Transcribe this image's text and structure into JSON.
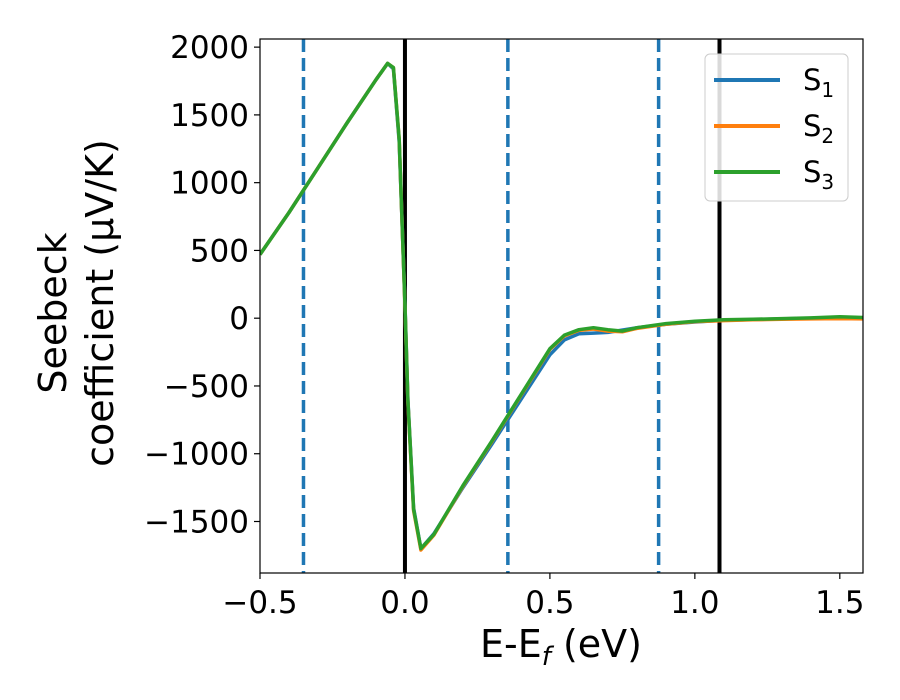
{
  "chart_data": {
    "type": "line",
    "xlabel": "E-E",
    "xlabel_sub": "f",
    "xlabel_unit": " (eV)",
    "ylabel_line1": "Seebeck",
    "ylabel_line2": "coefficient  (μV/K)",
    "xlim": [
      -0.5,
      1.58
    ],
    "ylim": [
      -1880,
      2060
    ],
    "xticks": [
      {
        "value": -0.5,
        "label": "−0.5"
      },
      {
        "value": 0.0,
        "label": "0.0"
      },
      {
        "value": 0.5,
        "label": "0.5"
      },
      {
        "value": 1.0,
        "label": "1.0"
      },
      {
        "value": 1.5,
        "label": "1.5"
      }
    ],
    "yticks": [
      {
        "value": 2000,
        "label": "2000"
      },
      {
        "value": 1500,
        "label": "1500"
      },
      {
        "value": 1000,
        "label": "1000"
      },
      {
        "value": 500,
        "label": "500"
      },
      {
        "value": 0,
        "label": "0"
      },
      {
        "value": -500,
        "label": "−500"
      },
      {
        "value": -1000,
        "label": "−1000"
      },
      {
        "value": -1500,
        "label": "−1500"
      }
    ],
    "grid": false,
    "legend_position": "top-right",
    "vertical_lines": [
      {
        "x": -0.35,
        "style": "dashed",
        "color": "#1f77b4"
      },
      {
        "x": 0.0,
        "style": "solid",
        "color": "#000000"
      },
      {
        "x": 0.355,
        "style": "dashed",
        "color": "#1f77b4"
      },
      {
        "x": 0.875,
        "style": "dashed",
        "color": "#1f77b4"
      },
      {
        "x": 1.085,
        "style": "solid",
        "color": "#000000"
      }
    ],
    "series": [
      {
        "name": "S",
        "sub": "1",
        "color": "#1f77b4",
        "points": [
          [
            -0.5,
            470
          ],
          [
            -0.4,
            780
          ],
          [
            -0.3,
            1110
          ],
          [
            -0.2,
            1440
          ],
          [
            -0.1,
            1760
          ],
          [
            -0.06,
            1880
          ],
          [
            -0.04,
            1840
          ],
          [
            -0.02,
            1300
          ],
          [
            0.0,
            100
          ],
          [
            0.01,
            -600
          ],
          [
            0.03,
            -1400
          ],
          [
            0.055,
            -1700
          ],
          [
            0.1,
            -1590
          ],
          [
            0.2,
            -1250
          ],
          [
            0.3,
            -930
          ],
          [
            0.4,
            -600
          ],
          [
            0.5,
            -270
          ],
          [
            0.55,
            -160
          ],
          [
            0.6,
            -115
          ],
          [
            0.65,
            -110
          ],
          [
            0.7,
            -105
          ],
          [
            0.8,
            -70
          ],
          [
            0.9,
            -45
          ],
          [
            1.0,
            -28
          ],
          [
            1.1,
            -15
          ],
          [
            1.2,
            -10
          ],
          [
            1.3,
            -5
          ],
          [
            1.4,
            0
          ],
          [
            1.5,
            5
          ],
          [
            1.58,
            0
          ]
        ]
      },
      {
        "name": "S",
        "sub": "2",
        "color": "#ff7f0e",
        "points": [
          [
            -0.5,
            470
          ],
          [
            -0.4,
            780
          ],
          [
            -0.3,
            1110
          ],
          [
            -0.2,
            1440
          ],
          [
            -0.1,
            1760
          ],
          [
            -0.06,
            1880
          ],
          [
            -0.04,
            1850
          ],
          [
            -0.02,
            1320
          ],
          [
            0.0,
            80
          ],
          [
            0.01,
            -620
          ],
          [
            0.03,
            -1420
          ],
          [
            0.055,
            -1710
          ],
          [
            0.1,
            -1600
          ],
          [
            0.2,
            -1240
          ],
          [
            0.3,
            -910
          ],
          [
            0.4,
            -570
          ],
          [
            0.5,
            -230
          ],
          [
            0.55,
            -130
          ],
          [
            0.6,
            -90
          ],
          [
            0.65,
            -80
          ],
          [
            0.7,
            -95
          ],
          [
            0.75,
            -100
          ],
          [
            0.8,
            -75
          ],
          [
            0.9,
            -45
          ],
          [
            1.0,
            -25
          ],
          [
            1.1,
            -18
          ],
          [
            1.2,
            -12
          ],
          [
            1.3,
            -8
          ],
          [
            1.4,
            -5
          ],
          [
            1.5,
            -3
          ],
          [
            1.58,
            -5
          ]
        ]
      },
      {
        "name": "S",
        "sub": "3",
        "color": "#2ca02c",
        "points": [
          [
            -0.5,
            470
          ],
          [
            -0.4,
            780
          ],
          [
            -0.3,
            1110
          ],
          [
            -0.2,
            1440
          ],
          [
            -0.1,
            1760
          ],
          [
            -0.06,
            1880
          ],
          [
            -0.04,
            1850
          ],
          [
            -0.02,
            1320
          ],
          [
            0.0,
            90
          ],
          [
            0.01,
            -610
          ],
          [
            0.03,
            -1410
          ],
          [
            0.055,
            -1700
          ],
          [
            0.1,
            -1595
          ],
          [
            0.2,
            -1235
          ],
          [
            0.3,
            -905
          ],
          [
            0.4,
            -565
          ],
          [
            0.5,
            -225
          ],
          [
            0.55,
            -125
          ],
          [
            0.6,
            -85
          ],
          [
            0.65,
            -70
          ],
          [
            0.7,
            -85
          ],
          [
            0.75,
            -95
          ],
          [
            0.8,
            -70
          ],
          [
            0.9,
            -40
          ],
          [
            1.0,
            -22
          ],
          [
            1.1,
            -12
          ],
          [
            1.2,
            -8
          ],
          [
            1.3,
            -3
          ],
          [
            1.4,
            2
          ],
          [
            1.5,
            10
          ],
          [
            1.58,
            5
          ]
        ]
      }
    ]
  }
}
